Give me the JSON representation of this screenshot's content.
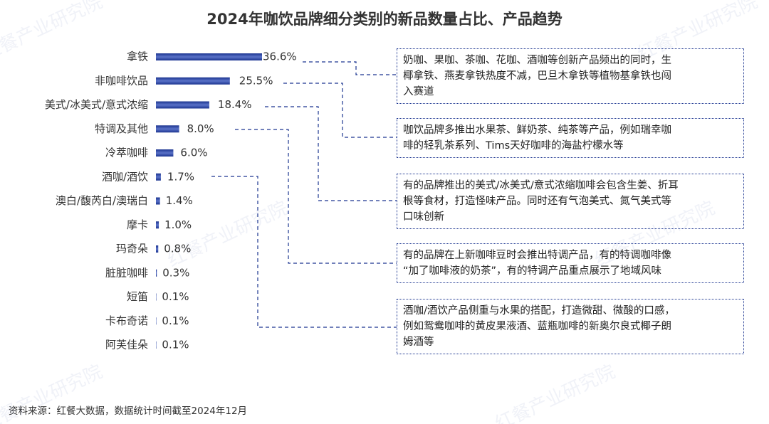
{
  "chart_data": {
    "type": "hbar",
    "title": "2024年咖饮品牌细分类别的新品数量占比、产品趋势",
    "categories": [
      "拿铁",
      "非咖啡饮品",
      "美式/冰美式/意式浓缩",
      "特调及其他",
      "冷萃咖啡",
      "酒咖/酒饮",
      "澳白/馥芮白/澳瑞白",
      "摩卡",
      "玛奇朵",
      "脏脏咖啡",
      "短笛",
      "卡布奇诺",
      "阿芙佳朵"
    ],
    "values": [
      36.6,
      25.5,
      18.4,
      8.0,
      6.0,
      1.7,
      1.4,
      1.0,
      0.8,
      0.3,
      0.1,
      0.1,
      0.1
    ],
    "value_labels": [
      "36.6%",
      "25.5%",
      "18.4%",
      "8.0%",
      "6.0%",
      "1.7%",
      "1.4%",
      "1.0%",
      "0.8%",
      "0.3%",
      "0.1%",
      "0.1%",
      "0.1%"
    ],
    "color": "#1c3590",
    "annotations": [
      {
        "lines": [
          "奶咖、果咖、茶咖、花咖、酒咖等创新产品频出的同时，生",
          "椰拿铁、燕麦拿铁热度不减，巴旦木拿铁等植物基拿铁也闯",
          "入赛道"
        ]
      },
      {
        "lines": [
          "咖饮品牌多推出水果茶、鲜奶茶、纯茶等产品，例如瑞幸咖",
          "啡的轻乳茶系列、Tims天好咖啡的海盐柠檬水等"
        ]
      },
      {
        "lines": [
          "有的品牌推出的美式/冰美式/意式浓缩咖啡会包含生姜、折耳",
          "根等食材，打造怪味产品。同时还有气泡美式、氮气美式等",
          "口味创新"
        ]
      },
      {
        "lines": [
          "有的品牌在上新咖啡豆时会推出特调产品，有的特调咖啡像",
          "“加了咖啡液的奶茶”，有的特调产品重点展示了地域风味"
        ]
      },
      {
        "lines": [
          "酒咖/酒饮产品侧重与水果的搭配，打造微甜、微酸的口感，",
          "例如鸳鸯咖啡的黄皮果液酒、蓝瓶咖啡的新奥尔良式椰子朗",
          "姆酒等"
        ]
      }
    ],
    "source": "资料来源：红餐大数据，数据统计时间截至2024年12月",
    "watermark": "红餐产业研究院"
  }
}
